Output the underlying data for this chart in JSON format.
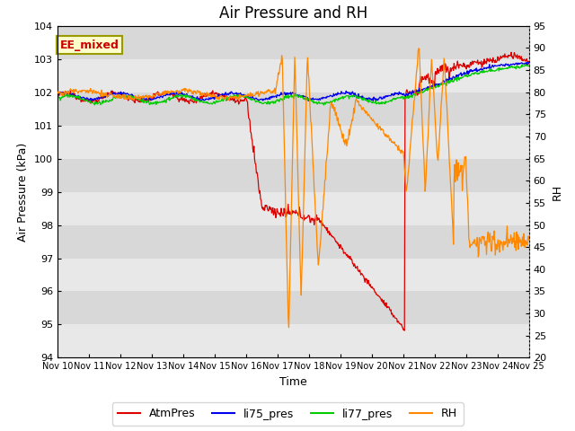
{
  "title": "Air Pressure and RH",
  "xlabel": "Time",
  "ylabel_left": "Air Pressure (kPa)",
  "ylabel_right": "RH",
  "annotation": "EE_mixed",
  "ylim_left": [
    94.0,
    104.0
  ],
  "ylim_right": [
    20,
    95
  ],
  "yticks_left": [
    94.0,
    95.0,
    96.0,
    97.0,
    98.0,
    99.0,
    100.0,
    101.0,
    102.0,
    103.0,
    104.0
  ],
  "yticks_right": [
    20,
    25,
    30,
    35,
    40,
    45,
    50,
    55,
    60,
    65,
    70,
    75,
    80,
    85,
    90,
    95
  ],
  "xtick_labels": [
    "Nov 10",
    "Nov 11",
    "Nov 12",
    "Nov 13",
    "Nov 14",
    "Nov 15",
    "Nov 16",
    "Nov 17",
    "Nov 18",
    "Nov 19",
    "Nov 20",
    "Nov 21",
    "Nov 22",
    "Nov 23",
    "Nov 24",
    "Nov 25"
  ],
  "colors": {
    "AtmPres": "#dd0000",
    "li75_pres": "#0000ee",
    "li77_pres": "#00cc00",
    "RH": "#ff8800"
  },
  "background_color": "#e8e8e8",
  "background_color_alt": "#d8d8d8",
  "grid_color": "#ffffff",
  "title_fontsize": 12,
  "axis_label_fontsize": 9,
  "tick_fontsize": 8
}
